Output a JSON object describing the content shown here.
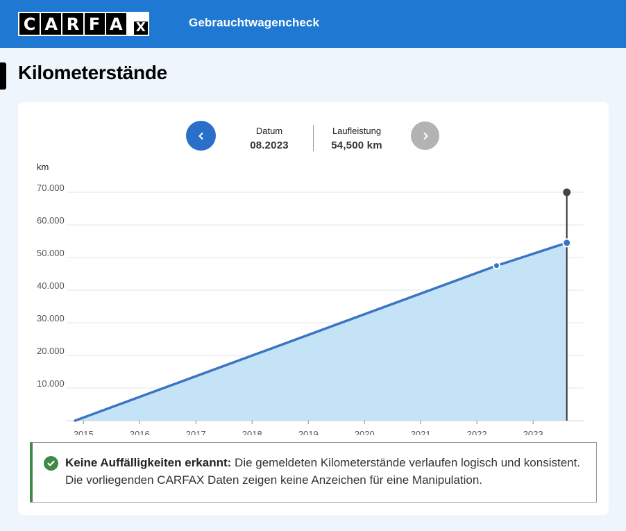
{
  "header": {
    "logo_letters": [
      "C",
      "A",
      "R",
      "F",
      "A",
      "X"
    ],
    "title": "Gebrauchtwagencheck",
    "background_color": "#1f78d1"
  },
  "section": {
    "title": "Kilometerstände"
  },
  "navigator": {
    "prev_icon": "chevron-left-icon",
    "next_icon": "chevron-right-icon",
    "date_label": "Datum",
    "date_value": "08.2023",
    "mileage_label": "Laufleistung",
    "mileage_value": "54,500 km"
  },
  "chart_data": {
    "type": "area",
    "ylabel": "km",
    "y_tick_labels": [
      "70.000",
      "60.000",
      "50.000",
      "40.000",
      "30.000",
      "20.000",
      "10.000"
    ],
    "y_ticks": [
      70000,
      60000,
      50000,
      40000,
      30000,
      20000,
      10000
    ],
    "ylim": [
      0,
      70000
    ],
    "x_tick_labels": [
      "2015",
      "2016",
      "2017",
      "2018",
      "2019",
      "2020",
      "2021",
      "2022",
      "2023"
    ],
    "x_ticks": [
      2015,
      2016,
      2017,
      2018,
      2019,
      2020,
      2021,
      2022,
      2023
    ],
    "xlim": [
      2014.7,
      2023.9
    ],
    "grid": true,
    "series": [
      {
        "points": [
          {
            "x": 2014.85,
            "y": 0
          },
          {
            "x": 2022.35,
            "y": 47500
          },
          {
            "x": 2023.6,
            "y": 54500
          }
        ]
      }
    ],
    "selected_point": {
      "x": 2023.6,
      "y": 54500,
      "label": "08.2023"
    },
    "line_color": "#3a74c4",
    "fill_color": "#c5e3f6"
  },
  "notice": {
    "icon": "check-circle-icon",
    "bold": "Keine Auffälligkeiten erkannt:",
    "text": " Die gemeldeten Kilometerstände verlaufen logisch und konsistent. Die vorliegenden CARFAX Daten zeigen keine Anzeichen für eine Manipulation.",
    "accent_color": "#3f8a49"
  }
}
